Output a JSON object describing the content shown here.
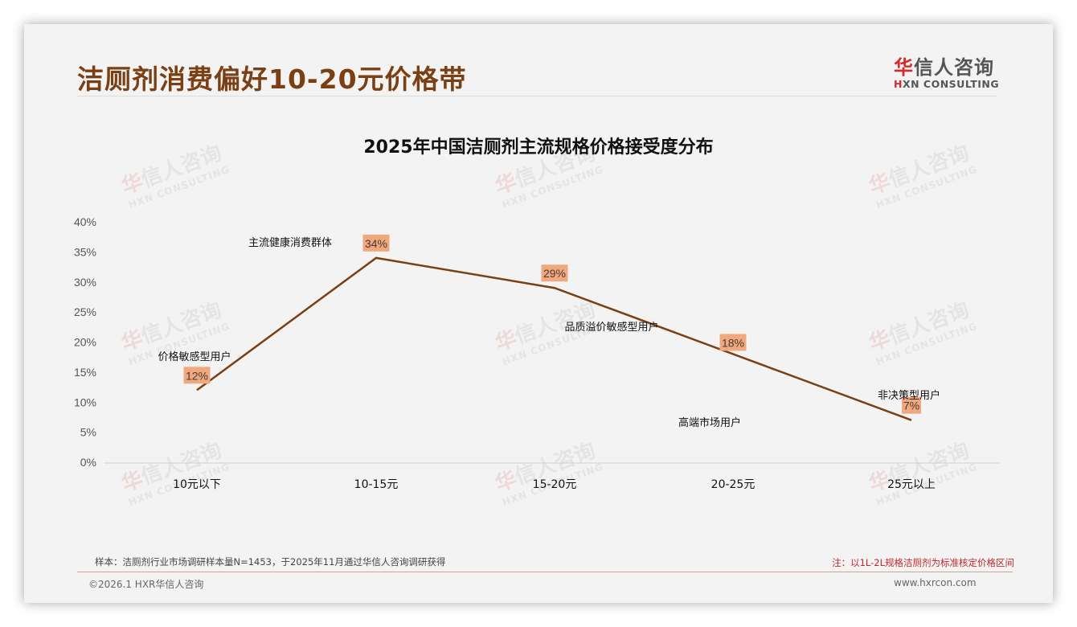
{
  "header": {
    "title": "洁厕剂消费偏好10-20元价格带",
    "logo_cn_red": "华",
    "logo_cn_rest": "信人咨询",
    "logo_en_red": "H",
    "logo_en_rest": "XN CONSULTING"
  },
  "watermark": {
    "cn_red": "华",
    "cn_rest": "信人咨询",
    "en": "HXN CONSULTING"
  },
  "chart_data": {
    "type": "line",
    "title": "2025年中国洁厕剂主流规格价格接受度分布",
    "categories": [
      "10元以下",
      "10-15元",
      "15-20元",
      "20-25元",
      "25元以上"
    ],
    "values": [
      12,
      34,
      29,
      18,
      7
    ],
    "value_labels": [
      "12%",
      "34%",
      "29%",
      "18%",
      "7%"
    ],
    "segment_labels": [
      "价格敏感型用户",
      "主流健康消费群体",
      "品质溢价敏感型用户",
      "高端市场用户",
      "非决策型用户"
    ],
    "xlabel": "",
    "ylabel": "",
    "ylim": [
      0,
      40
    ],
    "yticks": [
      "0%",
      "5%",
      "10%",
      "15%",
      "20%",
      "25%",
      "30%",
      "35%",
      "40%"
    ],
    "grid": false,
    "legend": "none",
    "line_color": "#7b3f14",
    "label_bg_color": "#f0a97f"
  },
  "footer": {
    "sample_note": "样本：洁厕剂行业市场调研样本量N=1453，于2025年11月通过华信人咨询调研获得",
    "price_note": "注：以1L-2L规格洁厕剂为标准核定价格区间",
    "copyright": "©2026.1 HXR华信人咨询",
    "website": "www.hxrcon.com"
  }
}
